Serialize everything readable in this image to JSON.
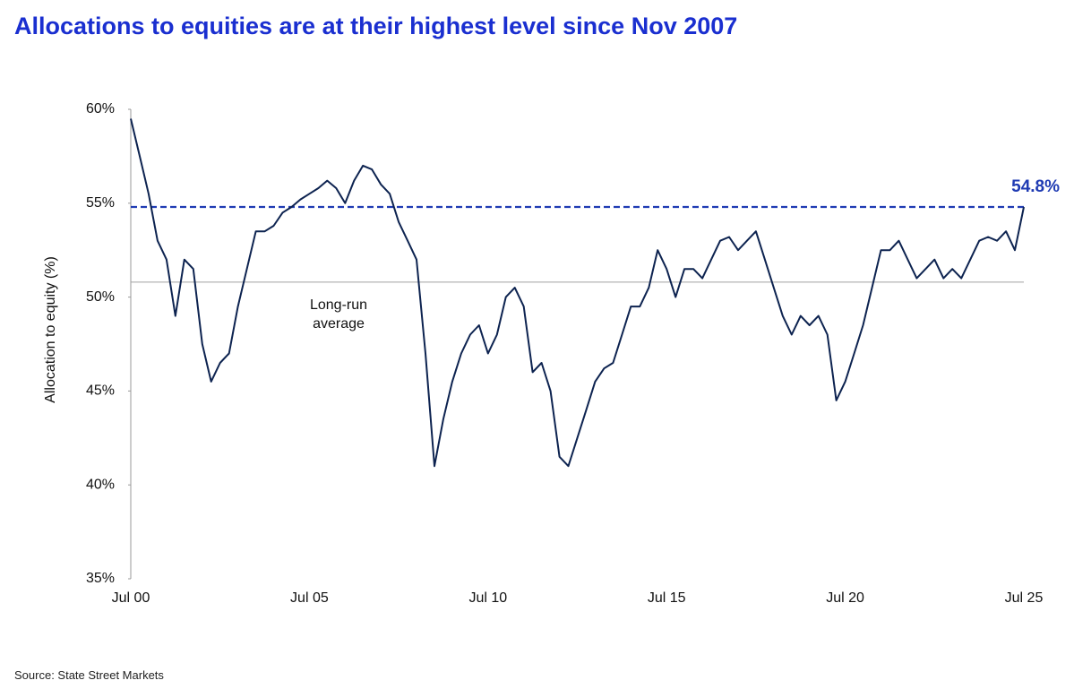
{
  "chart_data": {
    "type": "line",
    "title": "Allocations to equities are at their highest level since Nov 2007",
    "y_label": "Allocation to equity (%)",
    "source": "Source: State Street Markets",
    "categories": [
      "Jul 00",
      null,
      null,
      null,
      null,
      null,
      null,
      null,
      null,
      null,
      null,
      null,
      null,
      null,
      null,
      null,
      null,
      null,
      null,
      null,
      "Jul 05",
      null,
      null,
      null,
      null,
      null,
      null,
      null,
      null,
      null,
      null,
      null,
      null,
      null,
      null,
      null,
      null,
      null,
      null,
      null,
      "Jul 10",
      null,
      null,
      null,
      null,
      null,
      null,
      null,
      null,
      null,
      null,
      null,
      null,
      null,
      null,
      null,
      null,
      null,
      null,
      null,
      "Jul 15",
      null,
      null,
      null,
      null,
      null,
      null,
      null,
      null,
      null,
      null,
      null,
      null,
      null,
      null,
      null,
      null,
      null,
      null,
      null,
      "Jul 20",
      null,
      null,
      null,
      null,
      null,
      null,
      null,
      null,
      null,
      null,
      null,
      null,
      null,
      null,
      null,
      null,
      null,
      null,
      null,
      "Jul 25"
    ],
    "series": [
      {
        "name": "Allocation to equity",
        "color": "#0d2350",
        "values": [
          59.5,
          57.5,
          55.5,
          53,
          52,
          49,
          52,
          51.5,
          47.5,
          45.5,
          46.5,
          47,
          49.5,
          51.5,
          53.5,
          53.5,
          53.8,
          54.5,
          54.8,
          55.2,
          55.5,
          55.8,
          56.2,
          55.8,
          55,
          56.2,
          57,
          56.8,
          56,
          55.5,
          54,
          53,
          52,
          47,
          41,
          43.5,
          45.5,
          47,
          48,
          48.5,
          47,
          48,
          50,
          50.5,
          49.5,
          46,
          46.5,
          45,
          41.5,
          41,
          42.5,
          44,
          45.5,
          46.2,
          46.5,
          48,
          49.5,
          49.5,
          50.5,
          52.5,
          51.5,
          50,
          51.5,
          51.5,
          51,
          52,
          53,
          53.2,
          52.5,
          53,
          53.5,
          52,
          50.5,
          49,
          48,
          49,
          48.5,
          49,
          48,
          44.5,
          45.5,
          47,
          48.5,
          50.5,
          52.5,
          52.5,
          53,
          52,
          51,
          51.5,
          52,
          51,
          51.5,
          51,
          52,
          53,
          53.2,
          53,
          53.5,
          52.5,
          54.8
        ]
      }
    ],
    "annotations": {
      "current": {
        "value": 54.8,
        "label": "54.8%",
        "color": "#1f3bb3"
      },
      "average": {
        "value": 50.8,
        "label": "Long-run average",
        "color": "#a0a0a0"
      }
    },
    "ylim": [
      35,
      60
    ],
    "yticks": [
      {
        "value": 35,
        "label": "35%"
      },
      {
        "value": 40,
        "label": "40%"
      },
      {
        "value": 45,
        "label": "45%"
      },
      {
        "value": 50,
        "label": "50%"
      },
      {
        "value": 55,
        "label": "55%"
      },
      {
        "value": 60,
        "label": "60%"
      }
    ],
    "grid": false
  }
}
